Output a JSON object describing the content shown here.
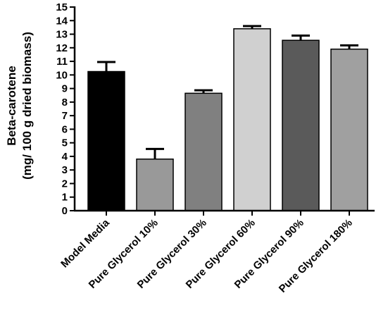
{
  "chart_data": {
    "type": "bar",
    "categories": [
      "Model Media",
      "Pure Glycerol 10%",
      "Pure Glycerol 30%",
      "Pure Glycerol 60%",
      "Pure Glycerol 90%",
      "Pure Glycerol 180%"
    ],
    "values": [
      10.25,
      3.8,
      8.65,
      13.4,
      12.55,
      11.9
    ],
    "errors": [
      0.7,
      0.75,
      0.22,
      0.2,
      0.35,
      0.28
    ],
    "bar_colors": [
      "#000000",
      "#999999",
      "#808080",
      "#d0d0d0",
      "#5a5a5a",
      "#a0a0a0"
    ],
    "ylabel_line1": "Beta-carotene",
    "ylabel_line2": "(mg/ 100 g dried biomass)",
    "xlabel": "",
    "ylim": [
      0,
      15
    ],
    "yticks": [
      0,
      1,
      2,
      3,
      4,
      5,
      6,
      7,
      8,
      9,
      10,
      11,
      12,
      13,
      14,
      15
    ],
    "grid": false,
    "legend": "none"
  }
}
